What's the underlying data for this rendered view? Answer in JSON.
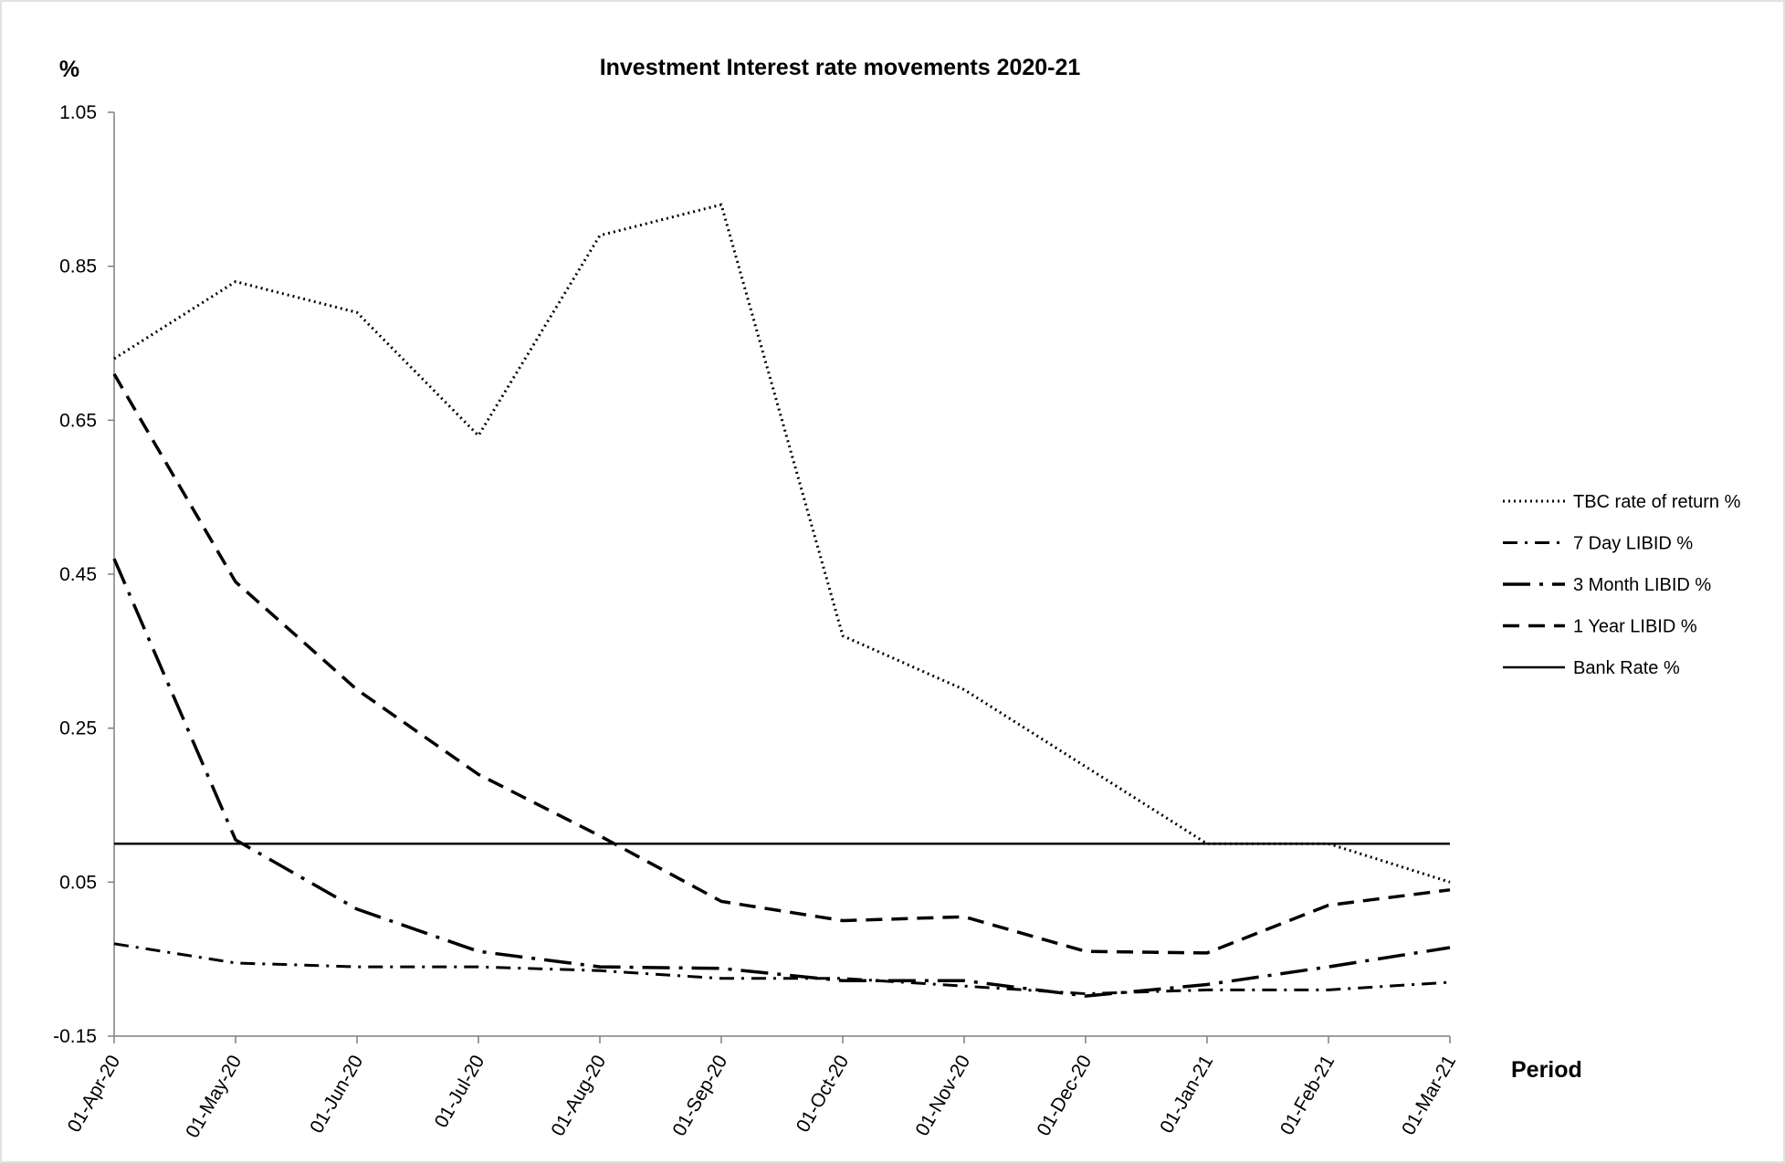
{
  "chart_data": {
    "type": "line",
    "title": "Investment Interest rate movements 2020-21",
    "ylabel": "%",
    "xlabel": "Period",
    "ylim": [
      -0.15,
      1.05
    ],
    "yticks": [
      "1.05",
      "0.85",
      "0.65",
      "0.45",
      "0.25",
      "0.05",
      "-0.15"
    ],
    "grid": false,
    "legend": "right",
    "categories": [
      "01-Apr-20",
      "01-May-20",
      "01-Jun-20",
      "01-Jul-20",
      "01-Aug-20",
      "01-Sep-20",
      "01-Oct-20",
      "01-Nov-20",
      "01-Dec-20",
      "01-Jan-21",
      "01-Feb-21",
      "01-Mar-21"
    ],
    "series": [
      {
        "name": "TBC rate of return %",
        "dash": "dotted",
        "values": [
          0.73,
          0.83,
          0.79,
          0.63,
          0.89,
          0.93,
          0.37,
          0.3,
          0.2,
          0.1,
          0.1,
          0.05
        ]
      },
      {
        "name": "7 Day LIBID %",
        "dash": "dash-dot",
        "values": [
          -0.03,
          -0.055,
          -0.06,
          -0.06,
          -0.065,
          -0.075,
          -0.075,
          -0.085,
          -0.095,
          -0.09,
          -0.09,
          -0.08
        ]
      },
      {
        "name": "3 Month LIBID %",
        "dash": "long-dash-dot",
        "values": [
          0.47,
          0.105,
          0.015,
          -0.04,
          -0.06,
          -0.062,
          -0.078,
          -0.078,
          -0.098,
          -0.083,
          -0.06,
          -0.035
        ]
      },
      {
        "name": "1 Year LIBID %",
        "dash": "dashed",
        "values": [
          0.71,
          0.44,
          0.3,
          0.19,
          0.11,
          0.025,
          0.0,
          0.005,
          -0.04,
          -0.042,
          0.02,
          0.04
        ]
      },
      {
        "name": "Bank  Rate %",
        "dash": "solid",
        "values": [
          0.1,
          0.1,
          0.1,
          0.1,
          0.1,
          0.1,
          0.1,
          0.1,
          0.1,
          0.1,
          0.1,
          0.1
        ]
      }
    ]
  }
}
